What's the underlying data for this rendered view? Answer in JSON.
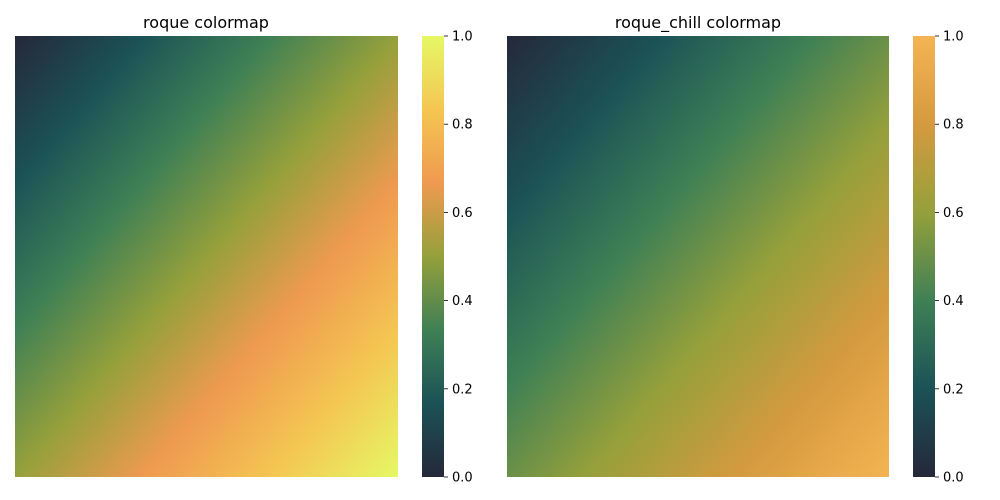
{
  "chart_data": [
    {
      "type": "heatmap",
      "title": "roque colormap",
      "colormap": "roque",
      "colormap_stops": [
        "#252839",
        "#1b5257",
        "#3f8055",
        "#95a03b",
        "#ef9a50",
        "#f4c652",
        "#e6f865"
      ],
      "value_range": [
        0,
        1
      ],
      "field": "value increases diagonally from top-left (0) to bottom-right (1)",
      "colorbar": {
        "ticks": [
          "0.0",
          "0.2",
          "0.4",
          "0.6",
          "0.8",
          "1.0"
        ]
      },
      "grid": false,
      "xaxis_visible": false,
      "yaxis_visible": false
    },
    {
      "type": "heatmap",
      "title": "roque_chill colormap",
      "colormap": "roque_chill",
      "colormap_stops": [
        "#252839",
        "#1b5257",
        "#3f8055",
        "#95a03b",
        "#d59a3f",
        "#f4b453"
      ],
      "value_range": [
        0,
        1
      ],
      "field": "value increases diagonally from top-left (0) to bottom-right (1)",
      "colorbar": {
        "ticks": [
          "0.0",
          "0.2",
          "0.4",
          "0.6",
          "0.8",
          "1.0"
        ]
      },
      "grid": false,
      "xaxis_visible": false,
      "yaxis_visible": false
    }
  ]
}
